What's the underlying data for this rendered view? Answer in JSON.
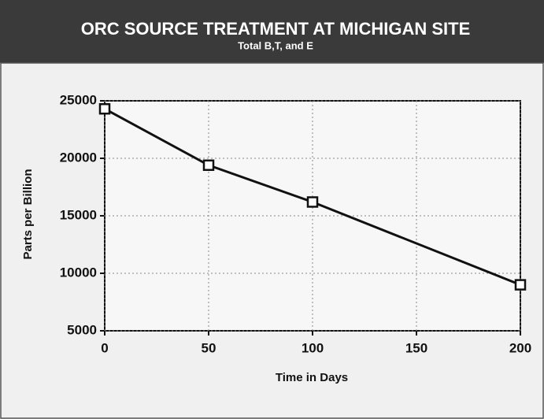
{
  "chart_data": {
    "type": "line",
    "title": "ORC SOURCE TREATMENT AT MICHIGAN SITE",
    "subtitle": "Total B,T, and E",
    "x_label": "Time in Days",
    "y_label": "Parts per Billion",
    "x": [
      0,
      50,
      100,
      200
    ],
    "values": [
      24300,
      19400,
      16200,
      9000
    ],
    "color": "#111111",
    "xlim": [
      0,
      200
    ],
    "xticks": [
      0,
      50,
      100,
      150,
      200
    ],
    "ylim": [
      5000,
      25000
    ],
    "yticks": [
      5000,
      10000,
      15000,
      20000,
      25000
    ],
    "grid": true
  }
}
